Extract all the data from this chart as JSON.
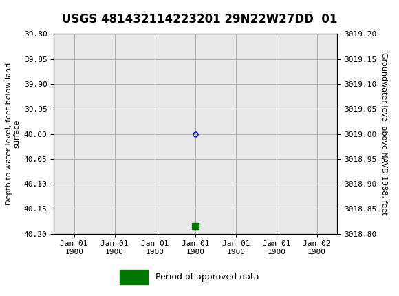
{
  "title": "USGS 481432114223201 29N22W27DD  01",
  "header_bg_color": "#1a6b3c",
  "plot_bg_color": "#e8e8e8",
  "grid_color": "#b0b0b0",
  "left_ylabel": "Depth to water level, feet below land\nsurface",
  "right_ylabel": "Groundwater level above NAVD 1988, feet",
  "ylim_left_top": 39.8,
  "ylim_left_bottom": 40.2,
  "ylim_right_top": 3019.2,
  "ylim_right_bottom": 3018.8,
  "left_yticks": [
    39.8,
    39.85,
    39.9,
    39.95,
    40.0,
    40.05,
    40.1,
    40.15,
    40.2
  ],
  "right_yticks": [
    3019.2,
    3019.15,
    3019.1,
    3019.05,
    3019.0,
    3018.95,
    3018.9,
    3018.85,
    3018.8
  ],
  "data_x": [
    3.0
  ],
  "data_y_left": [
    40.0
  ],
  "point_color": "#0000cc",
  "point_marker": "o",
  "point_size": 5,
  "bar_x": 3.0,
  "bar_y_left": 40.185,
  "bar_color": "#007700",
  "bar_width": 0.18,
  "bar_height": 0.012,
  "xtick_labels": [
    "Jan 01\n1900",
    "Jan 01\n1900",
    "Jan 01\n1900",
    "Jan 01\n1900",
    "Jan 01\n1900",
    "Jan 01\n1900",
    "Jan 02\n1900"
  ],
  "xtick_positions": [
    0,
    1,
    2,
    3,
    4,
    5,
    6
  ],
  "legend_label": "Period of approved data",
  "legend_color": "#007700",
  "title_fontsize": 12,
  "axis_label_fontsize": 8,
  "tick_fontsize": 8,
  "legend_fontsize": 9
}
